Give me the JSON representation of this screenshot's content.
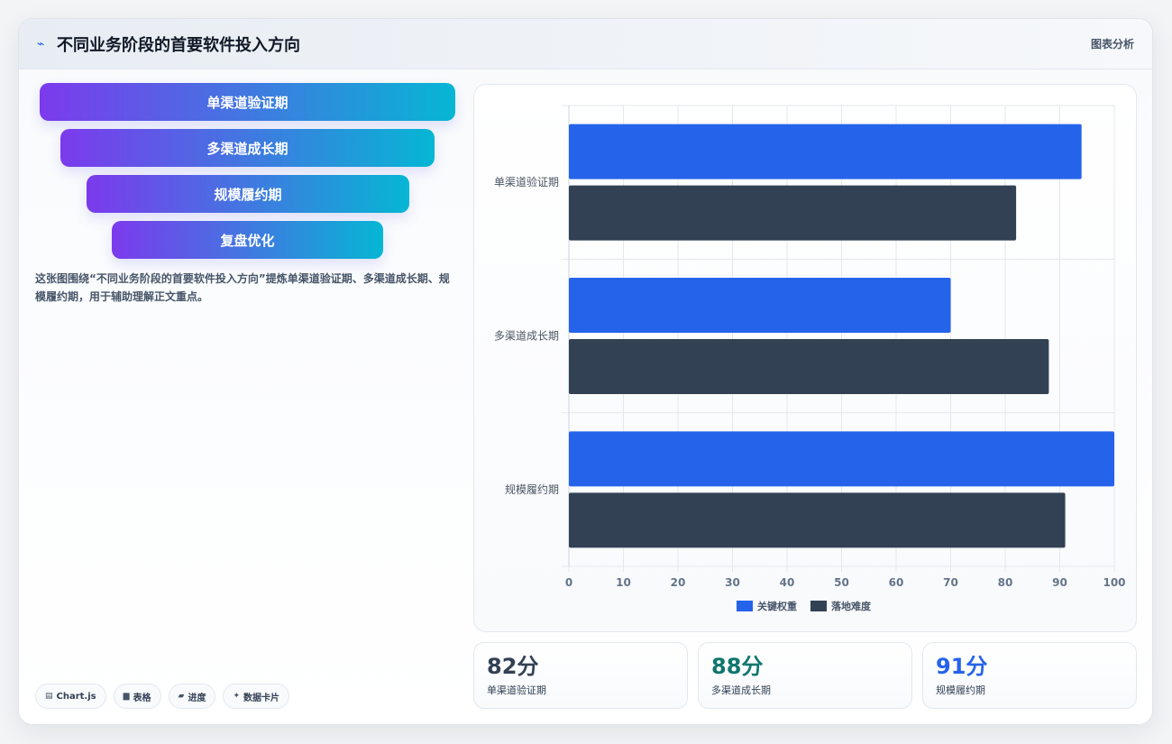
{
  "header": {
    "icon": "trend-line-icon",
    "title": "不同业务阶段的首要软件投入方向",
    "right_label": "图表分析"
  },
  "funnel": {
    "steps": [
      {
        "label": "单渠道验证期"
      },
      {
        "label": "多渠道成长期"
      },
      {
        "label": "规模履约期"
      },
      {
        "label": "复盘优化"
      }
    ],
    "gradient": [
      "#7c3aed",
      "#06b6d4"
    ]
  },
  "description": "这张图围绕“不同业务阶段的首要软件投入方向”提炼单渠道验证期、多渠道成长期、规模履约期，用于辅助理解正文重点。",
  "tags": [
    {
      "icon": "▤",
      "label": "Chart.js"
    },
    {
      "icon": "▆",
      "label": "表格"
    },
    {
      "icon": "▰",
      "label": "进度"
    },
    {
      "icon": "✦",
      "label": "数据卡片"
    }
  ],
  "chart_data": {
    "type": "bar",
    "orientation": "horizontal",
    "categories": [
      "单渠道验证期",
      "多渠道成长期",
      "规模履约期"
    ],
    "series": [
      {
        "name": "关键权重",
        "color": "#2563eb",
        "values": [
          94,
          70,
          100
        ]
      },
      {
        "name": "落地难度",
        "color": "#334155",
        "values": [
          82,
          88,
          91
        ]
      }
    ],
    "xlim": [
      0,
      100
    ],
    "xticks": [
      0,
      10,
      20,
      30,
      40,
      50,
      60,
      70,
      80,
      90,
      100
    ],
    "grid": true,
    "legend": "bottom"
  },
  "stats": [
    {
      "value": "82分",
      "label": "单渠道验证期",
      "color": "#334155"
    },
    {
      "value": "88分",
      "label": "多渠道成长期",
      "color": "#0f766e"
    },
    {
      "value": "91分",
      "label": "规模履约期",
      "color": "#2563eb"
    }
  ]
}
